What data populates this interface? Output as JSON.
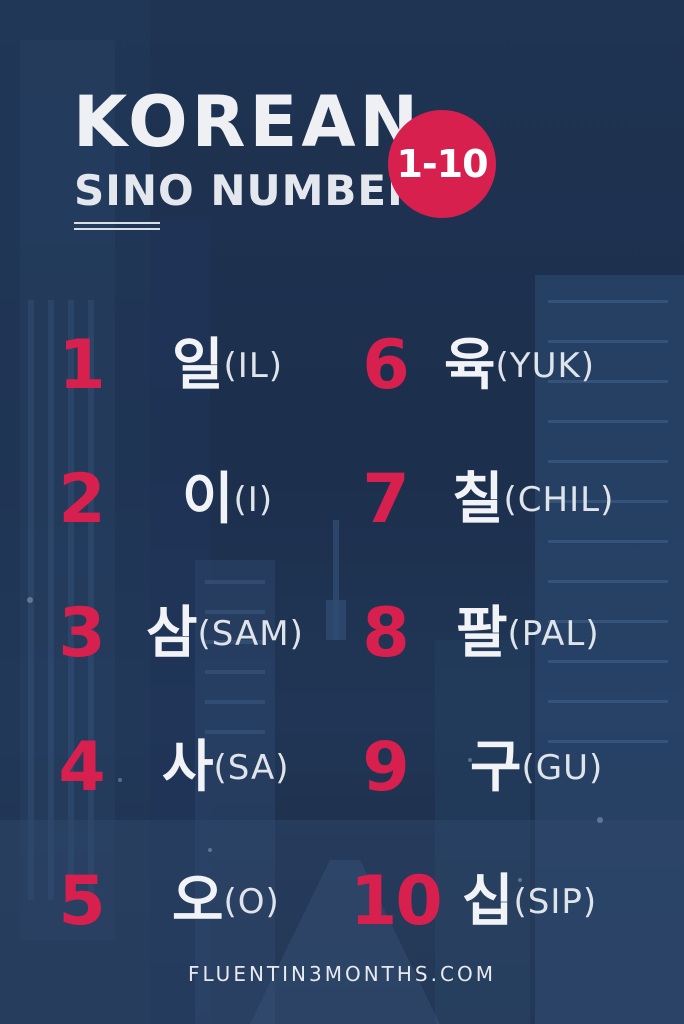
{
  "title": {
    "main": "KOREAN",
    "sub": "SINO NUMBERS"
  },
  "badge": {
    "label": "1-10"
  },
  "numbers": [
    {
      "numeral": "1",
      "hangul": "일",
      "romanization": "(IL)"
    },
    {
      "numeral": "2",
      "hangul": "이",
      "romanization": "(I)"
    },
    {
      "numeral": "3",
      "hangul": "삼",
      "romanization": "(SAM)"
    },
    {
      "numeral": "4",
      "hangul": "사",
      "romanization": "(SA)"
    },
    {
      "numeral": "5",
      "hangul": "오",
      "romanization": "(O)"
    },
    {
      "numeral": "6",
      "hangul": "육",
      "romanization": "(YUK)"
    },
    {
      "numeral": "7",
      "hangul": "칠",
      "romanization": "(CHIL)"
    },
    {
      "numeral": "8",
      "hangul": "팔",
      "romanization": "(PAL)"
    },
    {
      "numeral": "9",
      "hangul": "구",
      "romanization": "(GU)"
    },
    {
      "numeral": "10",
      "hangul": "십",
      "romanization": "(SIP)"
    }
  ],
  "footer": {
    "website": "FLUENTIN3MONTHS.COM"
  },
  "colors": {
    "background": "#1f3352",
    "accent": "#d8204e",
    "text": "#eef0f3"
  }
}
